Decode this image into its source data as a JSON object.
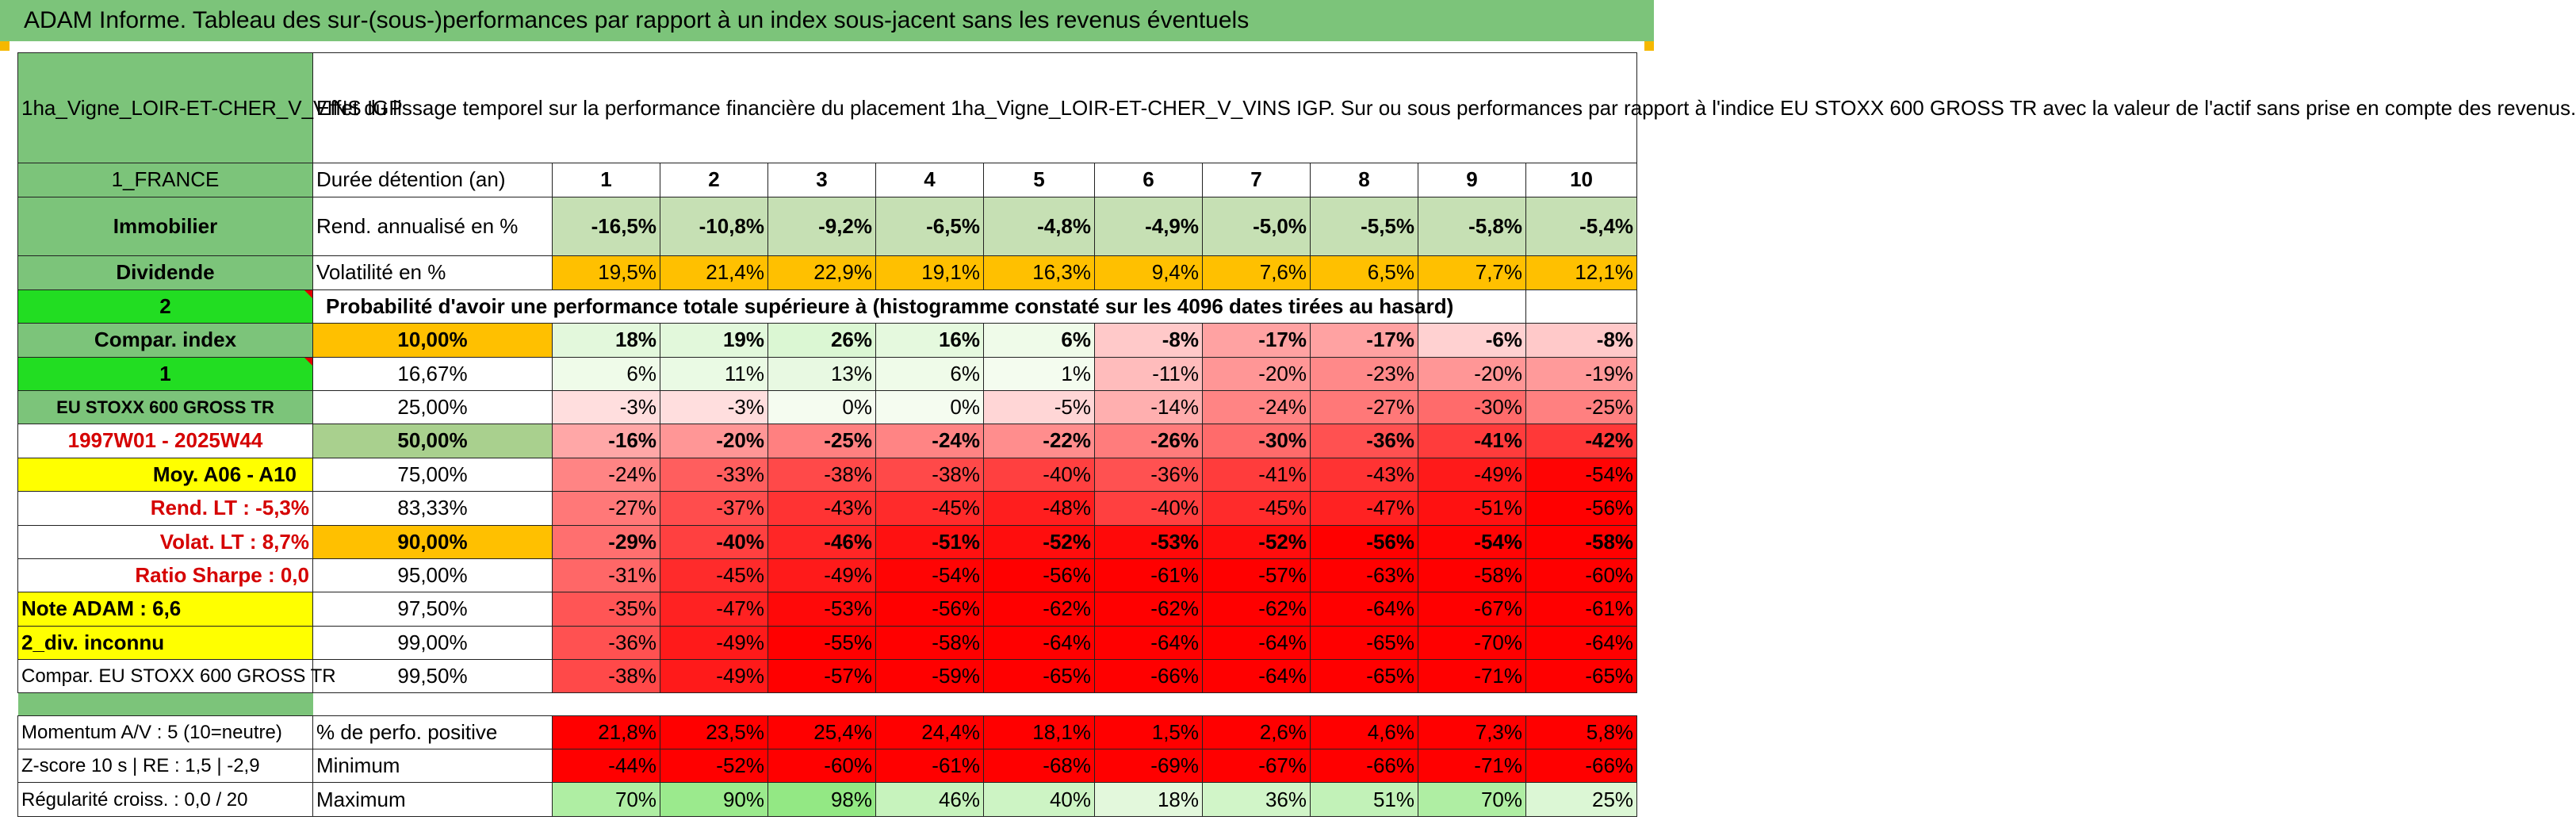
{
  "title": "ADAM Informe. Tableau des sur-(sous-)performances par rapport à un index sous-jacent sans les revenus éventuels",
  "colors": {
    "header_green": "#7cc47a",
    "bright_green": "#22dd22",
    "yellow": "#ffff00",
    "orange": "#ffc000",
    "red_text": "#d50000",
    "positive_base": "#1dd41d",
    "negative_base": "#ff0000"
  },
  "header": {
    "asset_name": "1ha_Vigne_LOIR-ET-CHER_V_VINS IGP",
    "description": "Effet du lissage temporel sur la performance financière du placement 1ha_Vigne_LOIR-ET-CHER_V_VINS IGP. Sur ou sous performances par rapport à l'indice EU STOXX 600 GROSS TR avec la valeur de l'actif sans prise en compte des revenus."
  },
  "side": {
    "country": "1_FRANCE",
    "category": "Immobilier",
    "dividend": "Dividende",
    "two": "2",
    "compar_index": "Compar. index",
    "one": "1",
    "index_name": "EU STOXX 600 GROSS TR",
    "period": "1997W01 - 2025W44",
    "moy": "Moy. A06 - A10",
    "rend_lt": "Rend. LT :   -5,3%",
    "volat_lt": "Volat. LT :   8,7%",
    "sharpe": "Ratio Sharpe :    0,0",
    "note": "Note ADAM : 6,6",
    "div": "2_div. inconnu",
    "compar": "Compar. EU STOXX 600 GROSS TR",
    "momentum": "Momentum A/V : 5 (10=neutre)",
    "zscore": "Z-score 10 s | RE : 1,5 | -2,9",
    "regularite": "Régularité croiss. : 0,0 / 20"
  },
  "table": {
    "duration_label": "Durée détention (an)",
    "years": [
      "1",
      "2",
      "3",
      "4",
      "5",
      "6",
      "7",
      "8",
      "9",
      "10"
    ],
    "return_label": "Rend. annualisé en %",
    "returns": [
      "-16,5%",
      "-10,8%",
      "-9,2%",
      "-6,5%",
      "-4,8%",
      "-4,9%",
      "-5,0%",
      "-5,5%",
      "-5,8%",
      "-5,4%"
    ],
    "volatility_label": "Volatilité en %",
    "volatility": [
      "19,5%",
      "21,4%",
      "22,9%",
      "19,1%",
      "16,3%",
      "9,4%",
      "7,6%",
      "6,5%",
      "7,7%",
      "12,1%"
    ],
    "prob_title": "Probabilité d'avoir une performance totale supérieure à (histogramme constaté sur les 4096 dates tirées au hasard)",
    "quantiles": [
      {
        "label": "10,00%",
        "values": [
          "18%",
          "19%",
          "26%",
          "16%",
          "6%",
          "-8%",
          "-17%",
          "-17%",
          "-6%",
          "-8%"
        ]
      },
      {
        "label": "16,67%",
        "values": [
          "6%",
          "11%",
          "13%",
          "6%",
          "1%",
          "-11%",
          "-20%",
          "-23%",
          "-20%",
          "-19%"
        ]
      },
      {
        "label": "25,00%",
        "values": [
          "-3%",
          "-3%",
          "0%",
          "0%",
          "-5%",
          "-14%",
          "-24%",
          "-27%",
          "-30%",
          "-25%"
        ]
      },
      {
        "label": "50,00%",
        "values": [
          "-16%",
          "-20%",
          "-25%",
          "-24%",
          "-22%",
          "-26%",
          "-30%",
          "-36%",
          "-41%",
          "-42%"
        ]
      },
      {
        "label": "75,00%",
        "values": [
          "-24%",
          "-33%",
          "-38%",
          "-38%",
          "-40%",
          "-36%",
          "-41%",
          "-43%",
          "-49%",
          "-54%"
        ]
      },
      {
        "label": "83,33%",
        "values": [
          "-27%",
          "-37%",
          "-43%",
          "-45%",
          "-48%",
          "-40%",
          "-45%",
          "-47%",
          "-51%",
          "-56%"
        ]
      },
      {
        "label": "90,00%",
        "values": [
          "-29%",
          "-40%",
          "-46%",
          "-51%",
          "-52%",
          "-53%",
          "-52%",
          "-56%",
          "-54%",
          "-58%"
        ]
      },
      {
        "label": "95,00%",
        "values": [
          "-31%",
          "-45%",
          "-49%",
          "-54%",
          "-56%",
          "-61%",
          "-57%",
          "-63%",
          "-58%",
          "-60%"
        ]
      },
      {
        "label": "97,50%",
        "values": [
          "-35%",
          "-47%",
          "-53%",
          "-56%",
          "-62%",
          "-62%",
          "-62%",
          "-64%",
          "-67%",
          "-61%"
        ]
      },
      {
        "label": "99,00%",
        "values": [
          "-36%",
          "-49%",
          "-55%",
          "-58%",
          "-64%",
          "-64%",
          "-64%",
          "-65%",
          "-70%",
          "-64%"
        ]
      },
      {
        "label": "99,50%",
        "values": [
          "-38%",
          "-49%",
          "-57%",
          "-59%",
          "-65%",
          "-66%",
          "-64%",
          "-65%",
          "-71%",
          "-65%"
        ]
      }
    ],
    "positive_label": "% de perfo. positive",
    "positive": [
      "21,8%",
      "23,5%",
      "25,4%",
      "24,4%",
      "18,1%",
      "1,5%",
      "2,6%",
      "4,6%",
      "7,3%",
      "5,8%"
    ],
    "minimum_label": "Minimum",
    "minimum": [
      "-44%",
      "-52%",
      "-60%",
      "-61%",
      "-68%",
      "-69%",
      "-67%",
      "-66%",
      "-71%",
      "-66%"
    ],
    "maximum_label": "Maximum",
    "maximum": [
      "70%",
      "90%",
      "98%",
      "46%",
      "40%",
      "18%",
      "36%",
      "51%",
      "70%",
      "25%"
    ]
  }
}
